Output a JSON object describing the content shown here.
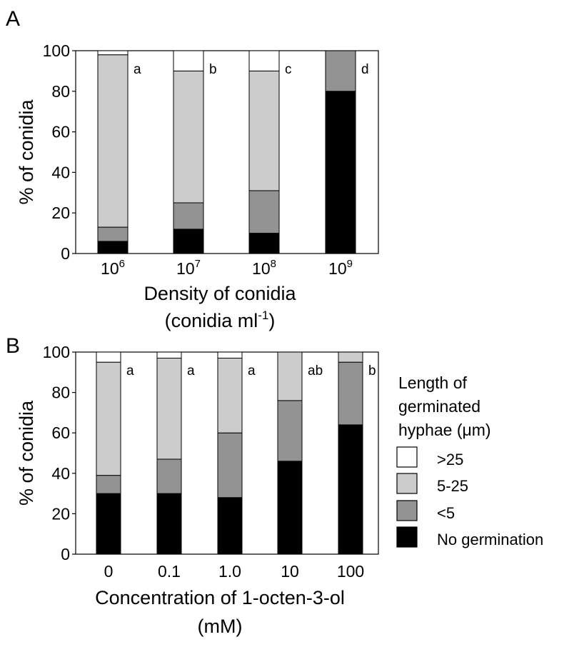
{
  "colors": {
    ">25": "#ffffff",
    "5-25": "#cccccc",
    "<5": "#939393",
    "No germination": "#000000"
  },
  "legend": {
    "title_lines": [
      "Length of",
      "germinated",
      "hyphae (μm)"
    ],
    "entries": [
      ">25",
      "5-25",
      "<5",
      "No germination"
    ]
  },
  "chart_data": [
    {
      "type": "bar",
      "stacked": true,
      "panel": "A",
      "categories": [
        {
          "base": "10",
          "exp": "6"
        },
        {
          "base": "10",
          "exp": "7"
        },
        {
          "base": "10",
          "exp": "8"
        },
        {
          "base": "10",
          "exp": "9"
        }
      ],
      "xlabel_lines": [
        [
          "Density of conidia"
        ],
        [
          "(conidia ml",
          {
            "sup": "-1"
          },
          ")"
        ]
      ],
      "ylabel": "% of conidia",
      "ylim": [
        0,
        100
      ],
      "yticks": [
        0,
        20,
        40,
        60,
        80,
        100
      ],
      "series": [
        {
          "name": "No germination",
          "values": [
            6,
            12,
            10,
            80
          ]
        },
        {
          "name": "<5",
          "values": [
            7,
            13,
            21,
            20
          ]
        },
        {
          "name": "5-25",
          "values": [
            85,
            65,
            59,
            0
          ]
        },
        {
          "name": ">25",
          "values": [
            2,
            10,
            10,
            0
          ]
        }
      ],
      "bar_labels": [
        "a",
        "b",
        "c",
        "d"
      ]
    },
    {
      "type": "bar",
      "stacked": true,
      "panel": "B",
      "categories": [
        "0",
        "0.1",
        "1.0",
        "10",
        "100"
      ],
      "xlabel_lines": [
        [
          "Concentration of 1-octen-3-ol"
        ],
        [
          "(mM)"
        ]
      ],
      "ylabel": "% of conidia",
      "ylim": [
        0,
        100
      ],
      "yticks": [
        0,
        20,
        40,
        60,
        80,
        100
      ],
      "series": [
        {
          "name": "No germination",
          "values": [
            30,
            30,
            28,
            46,
            64
          ]
        },
        {
          "name": "<5",
          "values": [
            9,
            17,
            32,
            30,
            31
          ]
        },
        {
          "name": "5-25",
          "values": [
            56,
            50,
            37,
            24,
            5
          ]
        },
        {
          "name": ">25",
          "values": [
            5,
            3,
            3,
            0,
            0
          ]
        }
      ],
      "bar_labels": [
        "a",
        "a",
        "a",
        "ab",
        "b"
      ]
    }
  ]
}
